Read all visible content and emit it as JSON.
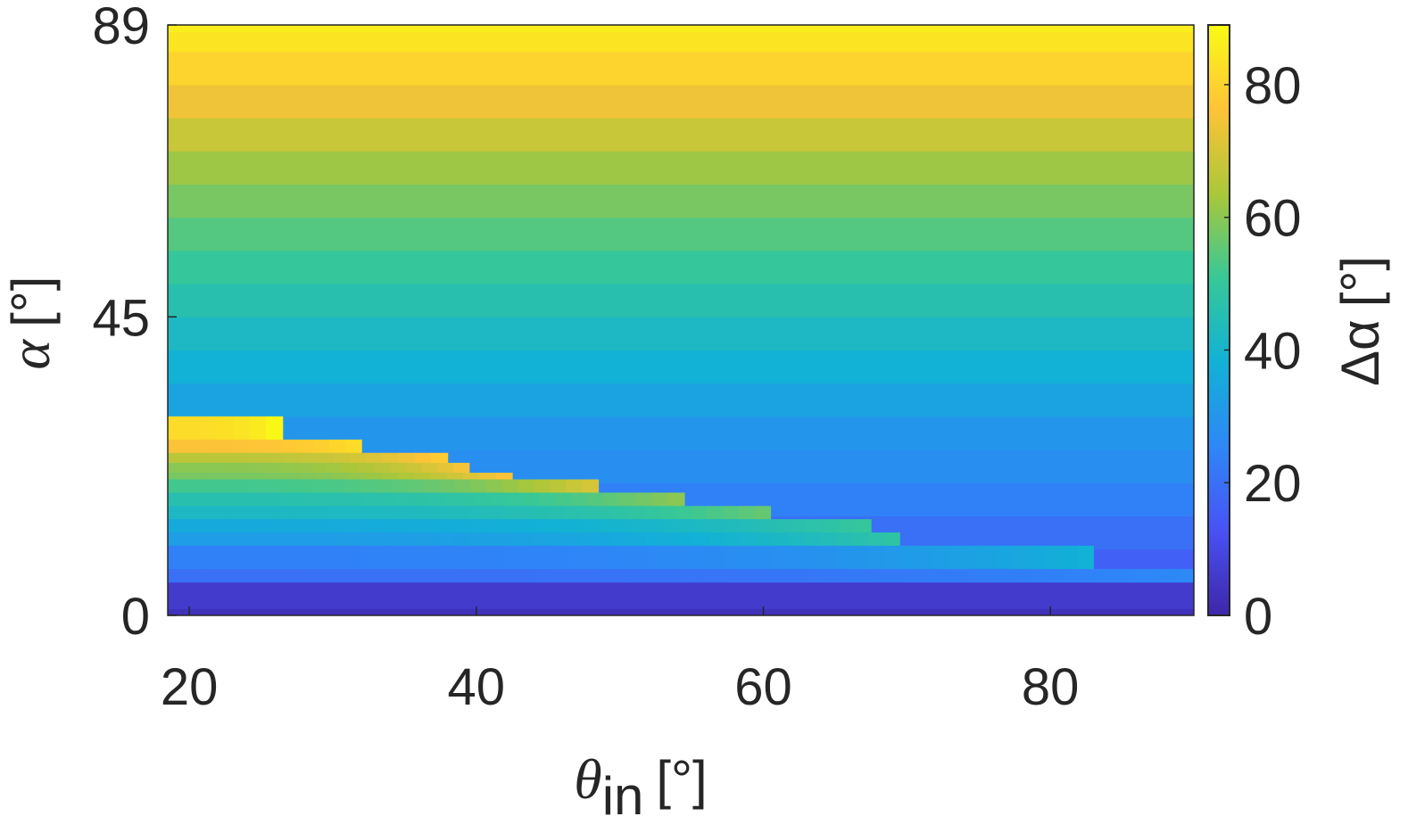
{
  "chart_data": {
    "type": "heatmap",
    "xlabel": "θ",
    "xlabel_sub": "in",
    "xlabel_unit": "[°]",
    "ylabel": "α",
    "ylabel_unit": "[°]",
    "colorbar_label": "Δα",
    "colorbar_unit": "[°]",
    "xlim": [
      18.5,
      90
    ],
    "ylim": [
      0,
      89
    ],
    "clim": [
      0,
      89
    ],
    "colormap": "parula",
    "xticks": [
      20,
      40,
      60,
      80
    ],
    "xtick_labels": [
      "20",
      "40",
      "60",
      "80"
    ],
    "yticks": [
      0,
      45,
      89
    ],
    "ytick_labels": [
      "0",
      "45",
      "89"
    ],
    "cticks": [
      0,
      20,
      40,
      60,
      80
    ],
    "ctick_labels": [
      "0",
      "20",
      "40",
      "60",
      "80"
    ],
    "background_rows": [
      {
        "alpha": [
          0,
          1
        ],
        "value": 3
      },
      {
        "alpha": [
          1,
          5
        ],
        "value": 6
      },
      {
        "alpha": [
          5,
          7
        ],
        "value": 12
      },
      {
        "alpha": [
          7,
          10
        ],
        "value": 16
      },
      {
        "alpha": [
          10,
          15
        ],
        "value": 20
      },
      {
        "alpha": [
          15,
          20
        ],
        "value": 24
      },
      {
        "alpha": [
          20,
          25
        ],
        "value": 28
      },
      {
        "alpha": [
          25,
          30
        ],
        "value": 30
      },
      {
        "alpha": [
          30,
          35
        ],
        "value": 34
      },
      {
        "alpha": [
          35,
          40
        ],
        "value": 38
      },
      {
        "alpha": [
          40,
          45
        ],
        "value": 42
      },
      {
        "alpha": [
          45,
          50
        ],
        "value": 46
      },
      {
        "alpha": [
          50,
          55
        ],
        "value": 50
      },
      {
        "alpha": [
          55,
          60
        ],
        "value": 54
      },
      {
        "alpha": [
          60,
          65
        ],
        "value": 58
      },
      {
        "alpha": [
          65,
          70
        ],
        "value": 62
      },
      {
        "alpha": [
          70,
          75
        ],
        "value": 68
      },
      {
        "alpha": [
          75,
          80
        ],
        "value": 74
      },
      {
        "alpha": [
          80,
          85
        ],
        "value": 80
      },
      {
        "alpha": [
          85,
          88
        ],
        "value": 84
      },
      {
        "alpha": [
          88,
          89
        ],
        "value": 86
      }
    ],
    "anomaly_blocks": [
      {
        "alpha": [
          26.5,
          30
        ],
        "theta_end": 26.5,
        "value_start": 82,
        "value_end": 88
      },
      {
        "alpha": [
          24.5,
          26.5
        ],
        "theta_end": 32,
        "value_start": 76,
        "value_end": 82
      },
      {
        "alpha": [
          23,
          24.5
        ],
        "theta_end": 38,
        "value_start": 66,
        "value_end": 78
      },
      {
        "alpha": [
          21.5,
          23
        ],
        "theta_end": 39.5,
        "value_start": 60,
        "value_end": 75
      },
      {
        "alpha": [
          20.5,
          21.5
        ],
        "theta_end": 42.5,
        "value_start": 58,
        "value_end": 76
      },
      {
        "alpha": [
          18.5,
          20.5
        ],
        "theta_end": 48.5,
        "value_start": 52,
        "value_end": 70
      },
      {
        "alpha": [
          16.5,
          18.5
        ],
        "theta_end": 54.5,
        "value_start": 46,
        "value_end": 60
      },
      {
        "alpha": [
          14.5,
          16.5
        ],
        "theta_end": 60.5,
        "value_start": 42,
        "value_end": 56
      },
      {
        "alpha": [
          12.5,
          14.5
        ],
        "theta_end": 67.5,
        "value_start": 36,
        "value_end": 50
      },
      {
        "alpha": [
          10.5,
          12.5
        ],
        "theta_end": 69.5,
        "value_start": 32,
        "value_end": 48
      },
      {
        "alpha": [
          7,
          10.5
        ],
        "theta_end": 83,
        "value_start": 24,
        "value_end": 38
      },
      {
        "alpha": [
          5,
          7
        ],
        "theta_end": 90,
        "value_start": 20,
        "value_end": 26
      }
    ]
  }
}
